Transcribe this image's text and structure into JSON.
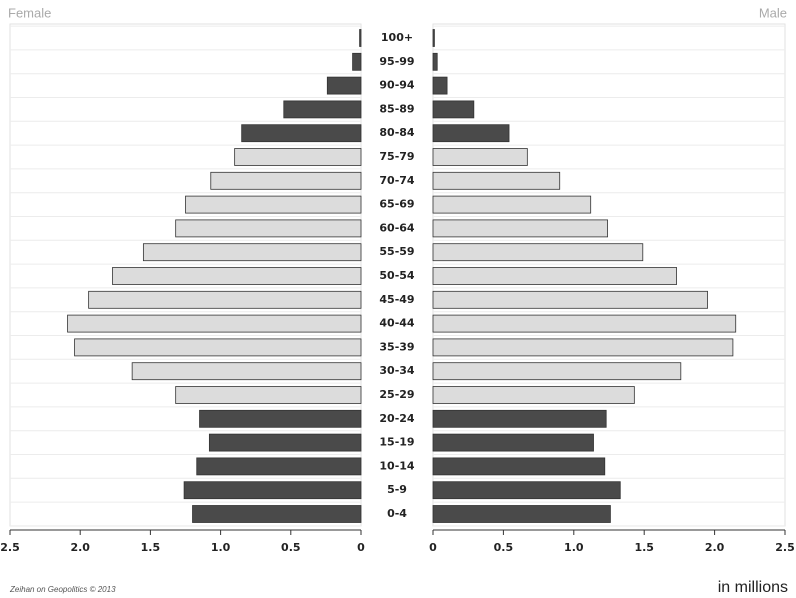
{
  "chart_data": {
    "type": "pyramid",
    "categories": [
      "100+",
      "95-99",
      "90-94",
      "85-89",
      "80-84",
      "75-79",
      "70-74",
      "65-69",
      "60-64",
      "55-59",
      "50-54",
      "45-49",
      "40-44",
      "35-39",
      "30-34",
      "25-29",
      "20-24",
      "15-19",
      "10-14",
      "5-9",
      "0-4"
    ],
    "series": [
      {
        "name": "Female",
        "side": "left",
        "values": [
          0.01,
          0.06,
          0.24,
          0.55,
          0.85,
          0.9,
          1.07,
          1.25,
          1.32,
          1.55,
          1.77,
          1.94,
          2.09,
          2.04,
          1.63,
          1.32,
          1.15,
          1.08,
          1.17,
          1.26,
          1.2
        ],
        "colors": [
          "#4a4a4a",
          "#4a4a4a",
          "#4a4a4a",
          "#4a4a4a",
          "#4a4a4a",
          "#dcdcdc",
          "#dcdcdc",
          "#dcdcdc",
          "#dcdcdc",
          "#dcdcdc",
          "#dcdcdc",
          "#dcdcdc",
          "#dcdcdc",
          "#dcdcdc",
          "#dcdcdc",
          "#dcdcdc",
          "#4a4a4a",
          "#4a4a4a",
          "#4a4a4a",
          "#4a4a4a",
          "#4a4a4a"
        ]
      },
      {
        "name": "Male",
        "side": "right",
        "values": [
          0.01,
          0.03,
          0.1,
          0.29,
          0.54,
          0.67,
          0.9,
          1.12,
          1.24,
          1.49,
          1.73,
          1.95,
          2.15,
          2.13,
          1.76,
          1.43,
          1.23,
          1.14,
          1.22,
          1.33,
          1.26
        ],
        "colors": [
          "#4a4a4a",
          "#4a4a4a",
          "#4a4a4a",
          "#4a4a4a",
          "#4a4a4a",
          "#dcdcdc",
          "#dcdcdc",
          "#dcdcdc",
          "#dcdcdc",
          "#dcdcdc",
          "#dcdcdc",
          "#dcdcdc",
          "#dcdcdc",
          "#dcdcdc",
          "#dcdcdc",
          "#dcdcdc",
          "#4a4a4a",
          "#4a4a4a",
          "#4a4a4a",
          "#4a4a4a",
          "#4a4a4a"
        ]
      }
    ],
    "xlim": [
      0,
      2.5
    ],
    "xticks": [
      0,
      0.5,
      {
        "value": 1,
        "label": "1.0"
      },
      1.5,
      {
        "value": 2,
        "label": "2.0"
      },
      2.5
    ],
    "unit_label": "in millions",
    "source": "Zeihan on Geopolitics © 2013"
  }
}
